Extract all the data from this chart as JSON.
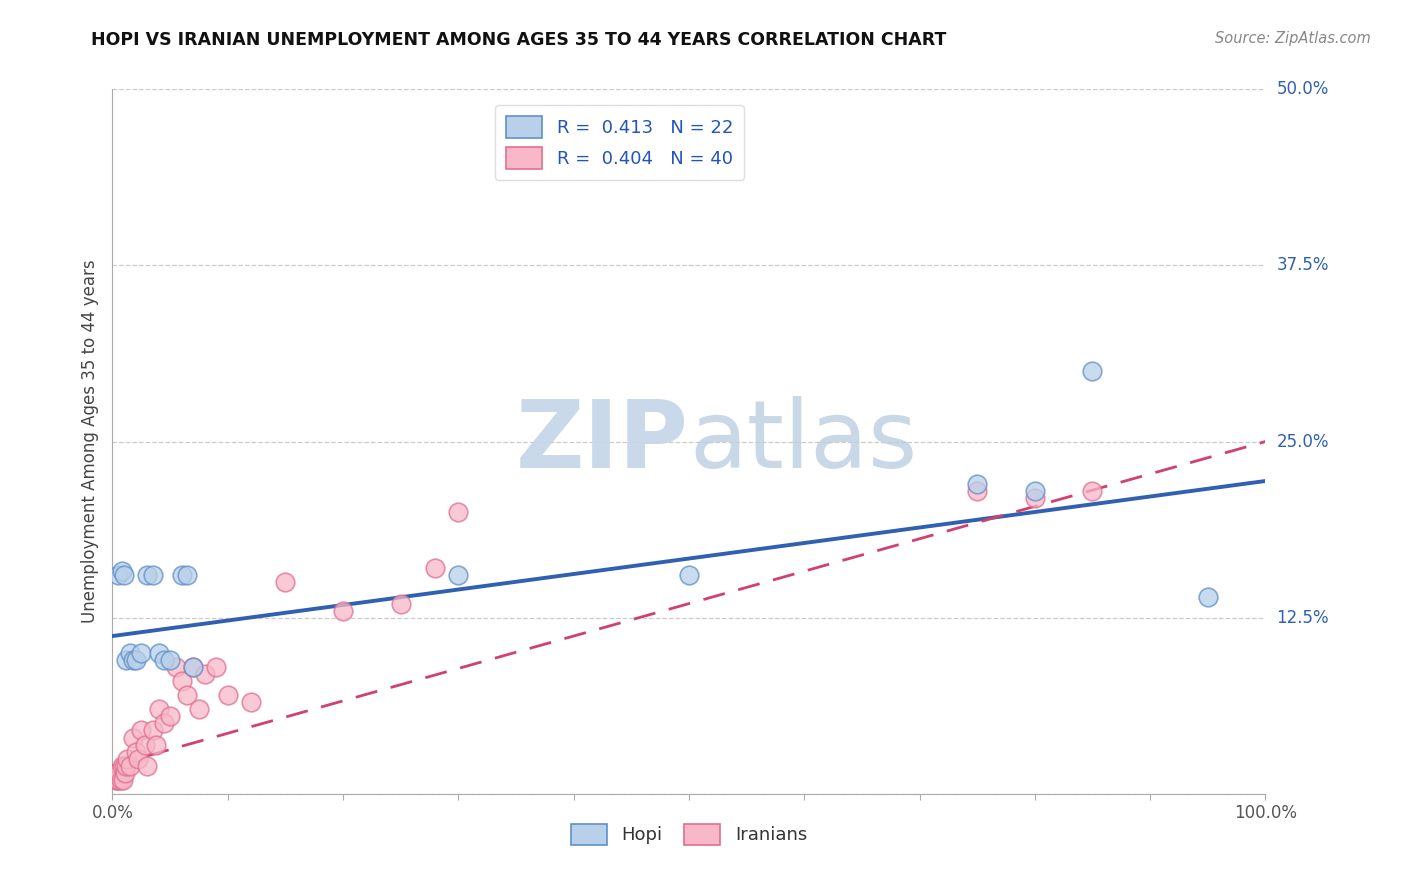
{
  "title": "HOPI VS IRANIAN UNEMPLOYMENT AMONG AGES 35 TO 44 YEARS CORRELATION CHART",
  "source": "Source: ZipAtlas.com",
  "ylabel": "Unemployment Among Ages 35 to 44 years",
  "xlim": [
    0.0,
    1.0
  ],
  "ylim": [
    0.0,
    0.5
  ],
  "xticks": [
    0.0,
    0.1,
    0.2,
    0.3,
    0.4,
    0.5,
    0.6,
    0.7,
    0.8,
    0.9,
    1.0
  ],
  "xticklabels": [
    "0.0%",
    "",
    "",
    "",
    "",
    "",
    "",
    "",
    "",
    "",
    "100.0%"
  ],
  "yticks": [
    0.0,
    0.125,
    0.25,
    0.375,
    0.5
  ],
  "yticklabels": [
    "",
    "12.5%",
    "25.0%",
    "37.5%",
    "50.0%"
  ],
  "hopi_R": "0.413",
  "hopi_N": "22",
  "iranians_R": "0.404",
  "iranians_N": "40",
  "hopi_fill_color": "#b8d0ea",
  "hopi_edge_color": "#6090c8",
  "hopi_line_color": "#3060b0",
  "iranians_fill_color": "#f8b8c8",
  "iranians_edge_color": "#e07090",
  "iranians_line_color": "#d04070",
  "watermark_zip_color": "#c8d8ee",
  "watermark_atlas_color": "#c0cce0",
  "legend_labels": [
    "Hopi",
    "Iranians"
  ],
  "hopi_x": [
    0.005,
    0.008,
    0.01,
    0.012,
    0.015,
    0.018,
    0.02,
    0.025,
    0.03,
    0.035,
    0.04,
    0.045,
    0.05,
    0.06,
    0.065,
    0.07,
    0.3,
    0.5,
    0.75,
    0.8,
    0.85,
    0.95
  ],
  "hopi_y": [
    0.155,
    0.158,
    0.155,
    0.095,
    0.1,
    0.095,
    0.095,
    0.1,
    0.155,
    0.155,
    0.1,
    0.095,
    0.095,
    0.155,
    0.155,
    0.09,
    0.155,
    0.155,
    0.22,
    0.215,
    0.3,
    0.14
  ],
  "iranians_x": [
    0.003,
    0.004,
    0.005,
    0.006,
    0.007,
    0.008,
    0.009,
    0.01,
    0.011,
    0.012,
    0.013,
    0.015,
    0.018,
    0.02,
    0.022,
    0.025,
    0.028,
    0.03,
    0.035,
    0.038,
    0.04,
    0.045,
    0.05,
    0.055,
    0.06,
    0.065,
    0.07,
    0.075,
    0.08,
    0.09,
    0.1,
    0.12,
    0.15,
    0.2,
    0.25,
    0.28,
    0.3,
    0.75,
    0.8,
    0.85
  ],
  "iranians_y": [
    0.01,
    0.01,
    0.01,
    0.015,
    0.01,
    0.02,
    0.01,
    0.02,
    0.015,
    0.02,
    0.025,
    0.02,
    0.04,
    0.03,
    0.025,
    0.045,
    0.035,
    0.02,
    0.045,
    0.035,
    0.06,
    0.05,
    0.055,
    0.09,
    0.08,
    0.07,
    0.09,
    0.06,
    0.085,
    0.09,
    0.07,
    0.065,
    0.15,
    0.13,
    0.135,
    0.16,
    0.2,
    0.215,
    0.21,
    0.215
  ],
  "hopi_intercept": 0.112,
  "hopi_slope": 0.11,
  "iranians_intercept": 0.02,
  "iranians_slope": 0.23
}
